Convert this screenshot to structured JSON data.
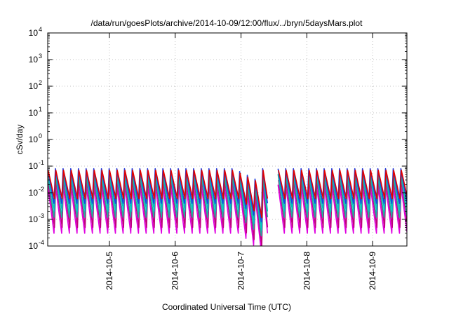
{
  "chart_data": {
    "type": "line",
    "title": "/data/run/goesPlots/archive/2014-10-09/12:00/flux/../bryn/5daysMars.plot",
    "xlabel": "Coordinated Universal Time (UTC)",
    "ylabel": "cSv/day",
    "y_scale": "log",
    "ylim": [
      0.0001,
      10000
    ],
    "y_ticks": [
      {
        "base": "10",
        "exp": "-4"
      },
      {
        "base": "10",
        "exp": "-3"
      },
      {
        "base": "10",
        "exp": "-2"
      },
      {
        "base": "10",
        "exp": "-1"
      },
      {
        "base": "10",
        "exp": "0"
      },
      {
        "base": "10",
        "exp": "1"
      },
      {
        "base": "10",
        "exp": "2"
      },
      {
        "base": "10",
        "exp": "3"
      },
      {
        "base": "10",
        "exp": "4"
      }
    ],
    "xlim": [
      "2014-10-04 01:30",
      "2014-10-09 12:30"
    ],
    "x_ticks": [
      "2014-10-5",
      "2014-10-6",
      "2014-10-7",
      "2014-10-8",
      "2014-10-9"
    ],
    "grid": true,
    "pattern": {
      "period_hours": 2.8,
      "ramp_down_hours": 2.3,
      "data_gap": [
        "2014-10-07 09:40",
        "2014-10-07 12:00"
      ]
    },
    "series": [
      {
        "color": "#e000e0",
        "peak": 0.02,
        "trough": 0.0003
      },
      {
        "color": "#c00080",
        "peak": 0.03,
        "trough": 0.0005
      },
      {
        "color": "#20b0a0",
        "peak": 0.05,
        "trough": 0.0012
      },
      {
        "color": "#00c0c0",
        "peak": 0.06,
        "trough": 0.002
      },
      {
        "color": "#2040e0",
        "peak": 0.08,
        "trough": 0.004
      },
      {
        "color": "#e00000",
        "peak": 0.07,
        "trough": 0.006
      }
    ]
  }
}
